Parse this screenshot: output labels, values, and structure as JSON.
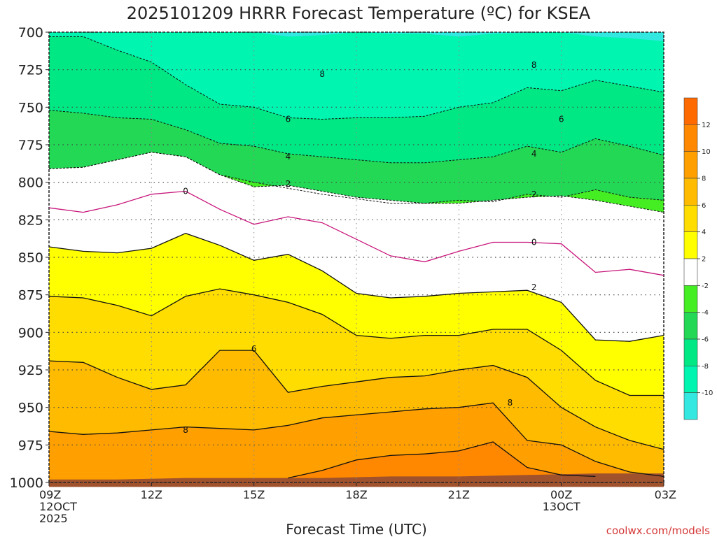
{
  "chart_data": {
    "type": "contour",
    "title": "2025101209 HRRR Forecast Temperature (ºC) for KSEA",
    "xlabel": "Forecast Time (UTC)",
    "ylabel": "",
    "credit": "coolwx.com/models",
    "x_hours": [
      0,
      3,
      6,
      9,
      12,
      15,
      18
    ],
    "x_ticks": [
      {
        "hour": 0,
        "label": "09Z",
        "sub1": "12OCT",
        "sub2": "2025"
      },
      {
        "hour": 3,
        "label": "12Z"
      },
      {
        "hour": 6,
        "label": "15Z"
      },
      {
        "hour": 9,
        "label": "18Z"
      },
      {
        "hour": 12,
        "label": "21Z"
      },
      {
        "hour": 15,
        "label": "00Z",
        "sub1": "13OCT"
      },
      {
        "hour": 18,
        "label": "03Z"
      }
    ],
    "y_levels": [
      700,
      725,
      750,
      775,
      800,
      825,
      850,
      875,
      900,
      925,
      950,
      975,
      1000
    ],
    "ylim": [
      700,
      1000
    ],
    "xlim": [
      0,
      18
    ],
    "colorbar": {
      "levels": [
        -12,
        -10,
        -8,
        -6,
        -4,
        -2,
        2,
        4,
        6,
        8,
        10,
        12,
        14
      ],
      "tick_labels": [
        "-10",
        "-8",
        "-6",
        "-4",
        "-2",
        "2",
        "4",
        "6",
        "8",
        "10",
        "12"
      ],
      "colors": [
        "#33e8e0",
        "#00f5b0",
        "#00e884",
        "#22d855",
        "#44ee22",
        "#ffffff",
        "#ffff00",
        "#ffdd00",
        "#ffbb00",
        "#ff9f00",
        "#ff8800",
        "#ff6a00"
      ]
    },
    "contours": [
      {
        "value": -8,
        "label": "8",
        "dashed": true,
        "color": "#111111",
        "points": [
          [
            0,
            703
          ],
          [
            1,
            703
          ],
          [
            2,
            712
          ],
          [
            3,
            720
          ],
          [
            4,
            735
          ],
          [
            5,
            748
          ],
          [
            6,
            750
          ],
          [
            7,
            757
          ],
          [
            8,
            758
          ],
          [
            9,
            757
          ],
          [
            10,
            757
          ],
          [
            11,
            756
          ],
          [
            12,
            750
          ],
          [
            13,
            747
          ],
          [
            14,
            737
          ],
          [
            15,
            739
          ],
          [
            16,
            732
          ],
          [
            17,
            736
          ],
          [
            18,
            740
          ]
        ],
        "labels": [
          [
            8,
            728
          ],
          [
            14.2,
            722
          ]
        ]
      },
      {
        "value": -6,
        "label": "6",
        "dashed": true,
        "color": "#111111",
        "points": [
          [
            0,
            752
          ],
          [
            1,
            754
          ],
          [
            2,
            757
          ],
          [
            3,
            758
          ],
          [
            4,
            765
          ],
          [
            5,
            774
          ],
          [
            6,
            776
          ],
          [
            7,
            781
          ],
          [
            8,
            783
          ],
          [
            9,
            785
          ],
          [
            10,
            787
          ],
          [
            11,
            787
          ],
          [
            12,
            785
          ],
          [
            13,
            783
          ],
          [
            14,
            776
          ],
          [
            15,
            780
          ],
          [
            16,
            771
          ],
          [
            17,
            776
          ],
          [
            18,
            782
          ]
        ],
        "labels": [
          [
            7,
            758
          ],
          [
            15,
            758
          ]
        ]
      },
      {
        "value": -4,
        "label": "4",
        "dashed": true,
        "color": "#111111",
        "points": [
          [
            0,
            791
          ],
          [
            1,
            790
          ],
          [
            2,
            785
          ],
          [
            3,
            780
          ],
          [
            4,
            783
          ],
          [
            5,
            795
          ],
          [
            6,
            800
          ],
          [
            7,
            804
          ],
          [
            8,
            808
          ],
          [
            9,
            811
          ],
          [
            10,
            814
          ],
          [
            11,
            814
          ],
          [
            12,
            812
          ],
          [
            13,
            813
          ],
          [
            14,
            808
          ],
          [
            15,
            810
          ],
          [
            16,
            805
          ],
          [
            17,
            810
          ],
          [
            18,
            812
          ]
        ],
        "labels": [
          [
            7,
            783
          ],
          [
            14.2,
            781
          ]
        ]
      },
      {
        "value": -2,
        "label": "2",
        "dashed": true,
        "color": "#111111",
        "points": [
          [
            0,
            791
          ],
          [
            1,
            790
          ],
          [
            2,
            785
          ],
          [
            3,
            780
          ],
          [
            4,
            783
          ],
          [
            5,
            795
          ],
          [
            6,
            803
          ],
          [
            7,
            802
          ],
          [
            8,
            806
          ],
          [
            9,
            810
          ],
          [
            10,
            812
          ],
          [
            11,
            814
          ],
          [
            12,
            814
          ],
          [
            13,
            812
          ],
          [
            14,
            810
          ],
          [
            15,
            809
          ],
          [
            16,
            812
          ],
          [
            17,
            816
          ],
          [
            18,
            820
          ]
        ],
        "labels": [
          [
            7,
            801
          ],
          [
            14.2,
            808
          ]
        ]
      },
      {
        "value": 0,
        "label": "0",
        "dashed": false,
        "color": "#c8157a",
        "points": [
          [
            0,
            817
          ],
          [
            1,
            820
          ],
          [
            2,
            815
          ],
          [
            3,
            808
          ],
          [
            4,
            806
          ],
          [
            5,
            818
          ],
          [
            6,
            828
          ],
          [
            7,
            823
          ],
          [
            8,
            827
          ],
          [
            9,
            838
          ],
          [
            10,
            849
          ],
          [
            11,
            853
          ],
          [
            12,
            846
          ],
          [
            13,
            840
          ],
          [
            14,
            840
          ],
          [
            15,
            841
          ],
          [
            16,
            860
          ],
          [
            17,
            858
          ],
          [
            18,
            862
          ]
        ],
        "labels": [
          [
            4,
            806
          ],
          [
            14.2,
            840
          ]
        ]
      },
      {
        "value": 2,
        "label": "2",
        "dashed": false,
        "color": "#111111",
        "points": [
          [
            0,
            843
          ],
          [
            1,
            846
          ],
          [
            2,
            847
          ],
          [
            3,
            844
          ],
          [
            4,
            834
          ],
          [
            5,
            842
          ],
          [
            6,
            852
          ],
          [
            7,
            848
          ],
          [
            8,
            859
          ],
          [
            9,
            874
          ],
          [
            10,
            877
          ],
          [
            11,
            876
          ],
          [
            12,
            874
          ],
          [
            13,
            873
          ],
          [
            14,
            872
          ],
          [
            15,
            880
          ],
          [
            16,
            905
          ],
          [
            17,
            906
          ],
          [
            18,
            902
          ]
        ],
        "labels": [
          [
            14.2,
            870
          ]
        ]
      },
      {
        "value": 4,
        "label": "4",
        "dashed": false,
        "color": "#111111",
        "points": [
          [
            0,
            876
          ],
          [
            1,
            877
          ],
          [
            2,
            882
          ],
          [
            3,
            889
          ],
          [
            4,
            876
          ],
          [
            5,
            871
          ],
          [
            6,
            875
          ],
          [
            7,
            880
          ],
          [
            8,
            888
          ],
          [
            9,
            902
          ],
          [
            10,
            904
          ],
          [
            11,
            902
          ],
          [
            12,
            902
          ],
          [
            13,
            898
          ],
          [
            14,
            898
          ],
          [
            15,
            912
          ],
          [
            16,
            932
          ],
          [
            17,
            942
          ],
          [
            18,
            942
          ]
        ],
        "labels": []
      },
      {
        "value": 6,
        "label": "6",
        "dashed": false,
        "color": "#111111",
        "points": [
          [
            0,
            919
          ],
          [
            1,
            920
          ],
          [
            2,
            930
          ],
          [
            3,
            938
          ],
          [
            4,
            935
          ],
          [
            5,
            912
          ],
          [
            6,
            912
          ],
          [
            7,
            940
          ],
          [
            8,
            936
          ],
          [
            9,
            933
          ],
          [
            10,
            930
          ],
          [
            11,
            929
          ],
          [
            12,
            925
          ],
          [
            13,
            922
          ],
          [
            14,
            930
          ],
          [
            15,
            950
          ],
          [
            16,
            963
          ],
          [
            17,
            972
          ],
          [
            18,
            978
          ]
        ],
        "labels": [
          [
            6,
            911
          ]
        ]
      },
      {
        "value": 8,
        "label": "8",
        "dashed": false,
        "color": "#111111",
        "points": [
          [
            0,
            966
          ],
          [
            1,
            968
          ],
          [
            2,
            967
          ],
          [
            3,
            965
          ],
          [
            4,
            963
          ],
          [
            5,
            964
          ],
          [
            6,
            965
          ],
          [
            7,
            962
          ],
          [
            8,
            957
          ],
          [
            9,
            955
          ],
          [
            10,
            953
          ],
          [
            11,
            951
          ],
          [
            12,
            950
          ],
          [
            13,
            947
          ],
          [
            14,
            972
          ],
          [
            15,
            975
          ],
          [
            16,
            986
          ],
          [
            17,
            993
          ],
          [
            18,
            996
          ]
        ],
        "labels": [
          [
            4,
            965
          ],
          [
            13.5,
            947
          ]
        ]
      },
      {
        "value": 10,
        "label": "",
        "dashed": false,
        "color": "#111111",
        "points": [
          [
            7,
            997
          ],
          [
            8,
            992
          ],
          [
            9,
            985
          ],
          [
            10,
            982
          ],
          [
            11,
            981
          ],
          [
            12,
            979
          ],
          [
            13,
            973
          ],
          [
            14,
            990
          ],
          [
            15,
            995
          ],
          [
            16,
            996
          ]
        ],
        "labels": []
      }
    ],
    "bands": [
      {
        "from_contour": -8,
        "to": 700,
        "color": "#00f5b0"
      },
      {
        "top_edge": 700,
        "color": "#33e8e0"
      }
    ],
    "surface": {
      "pressure": 1000,
      "color": "#a0522d"
    }
  }
}
